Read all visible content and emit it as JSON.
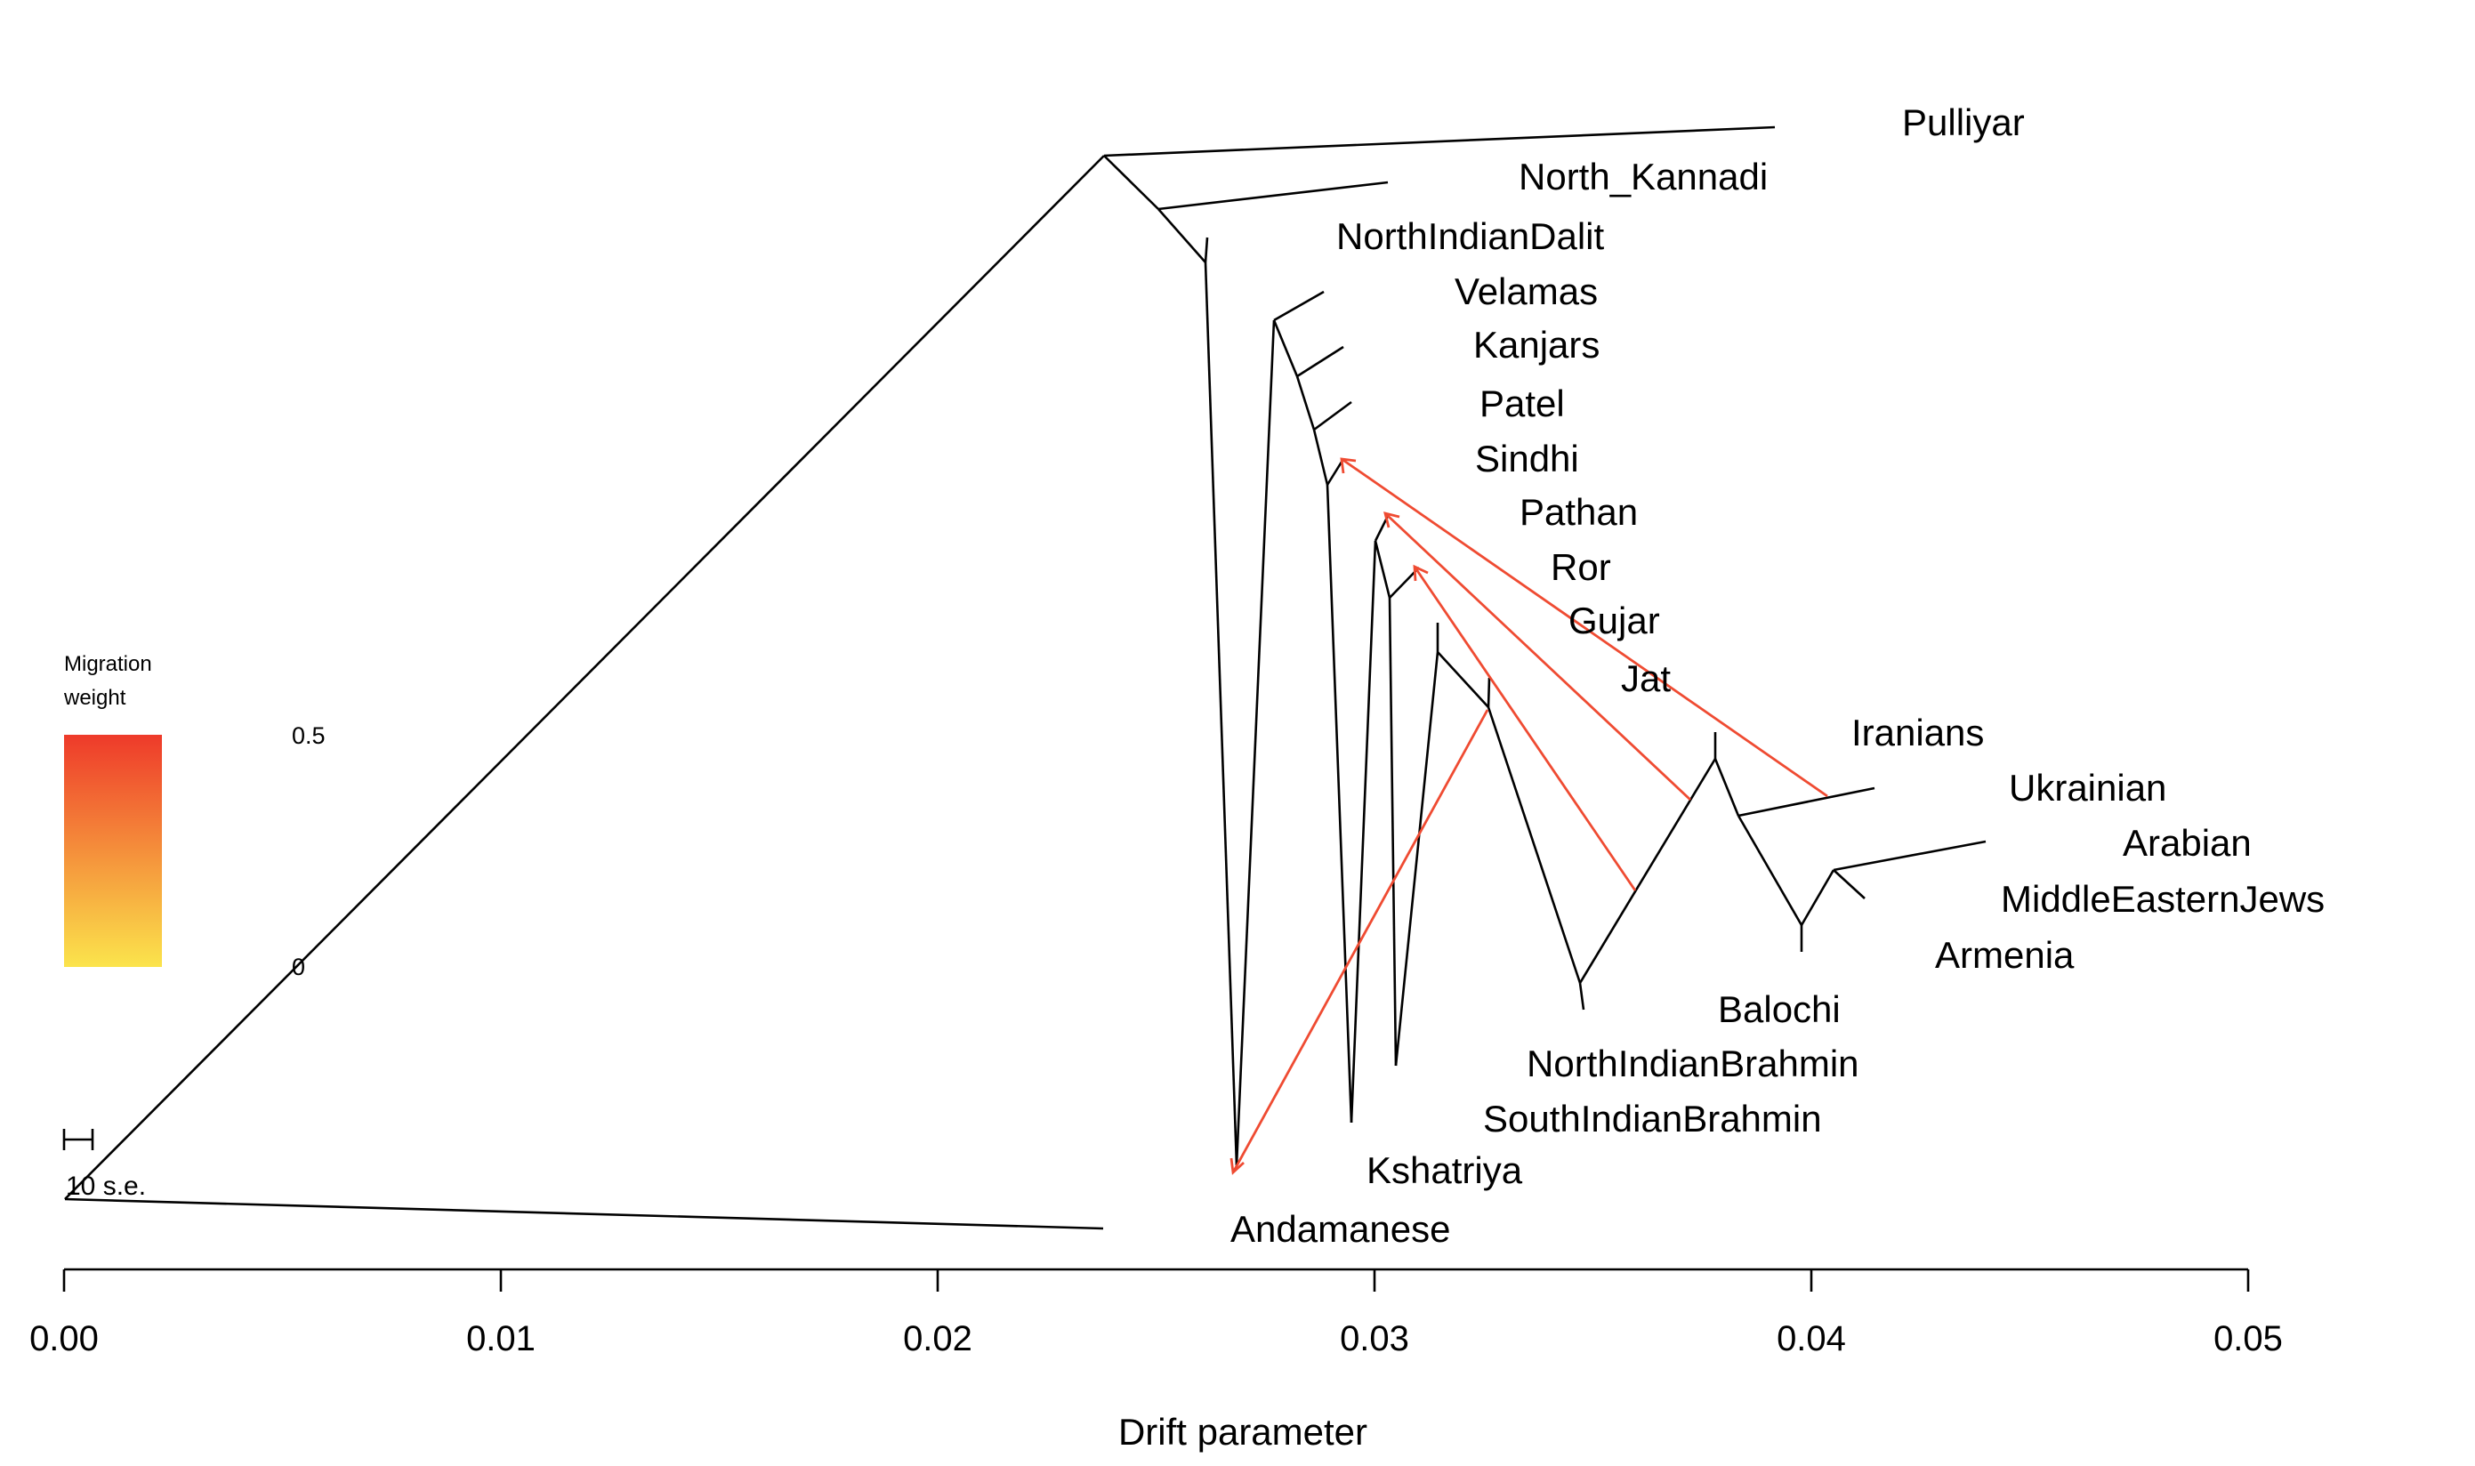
{
  "leaves": {
    "pulliyar": "Pulliyar",
    "north_kannadi": "North_Kannadi",
    "north_indian_dalit": "NorthIndianDalit",
    "velamas": "Velamas",
    "kanjars": "Kanjars",
    "patel": "Patel",
    "sindhi": "Sindhi",
    "pathan": "Pathan",
    "ror": "Ror",
    "gujar": "Gujar",
    "jat": "Jat",
    "iranians": "Iranians",
    "ukrainian": "Ukrainian",
    "arabian": "Arabian",
    "middle_eastern_jews": "MiddleEasternJews",
    "armenia": "Armenia",
    "balochi": "Balochi",
    "north_indian_brahmin": "NorthIndianBrahmin",
    "south_indian_brahmin": "SouthIndianBrahmin",
    "kshatriya": "Kshatriya",
    "andamanese": "Andamanese"
  },
  "legend": {
    "title_line1": "Migration",
    "title_line2": "weight",
    "max_label": "0.5",
    "min_label": "0",
    "gradient_top_color": "#ee3a2a",
    "gradient_bottom_color": "#fbe44c",
    "migration_color": "#ef4b32"
  },
  "scale_bar": {
    "label": "10 s.e."
  },
  "x_axis": {
    "label": "Drift parameter",
    "ticks": [
      "0.00",
      "0.01",
      "0.02",
      "0.03",
      "0.04",
      "0.05"
    ]
  }
}
